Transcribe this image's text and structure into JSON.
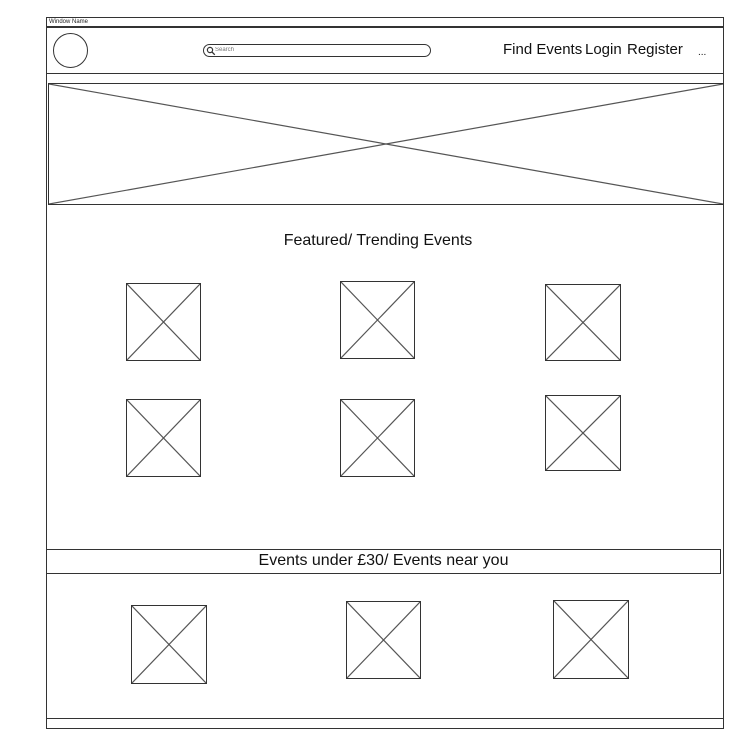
{
  "window": {
    "title": "Window Name"
  },
  "header": {
    "search_placeholder": "Search",
    "nav": [
      {
        "label": "Find Events"
      },
      {
        "label": "Login"
      },
      {
        "label": "Register"
      },
      {
        "label": "..."
      }
    ]
  },
  "featured": {
    "heading": "Featured/ Trending Events"
  },
  "deals": {
    "heading": "Events under £30/ Events near you"
  },
  "icons": {
    "search": "search-icon",
    "logo": "logo-placeholder",
    "image": "image-placeholder"
  }
}
